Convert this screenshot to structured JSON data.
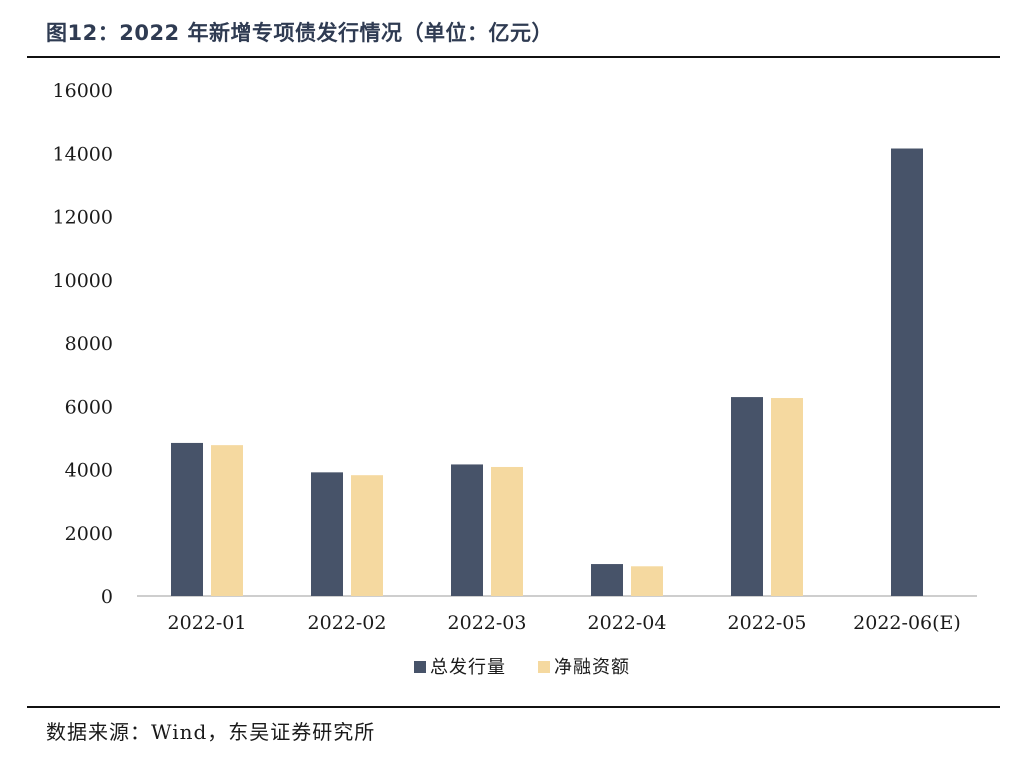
{
  "figure": {
    "title": "图12：2022 年新增专项债发行情况（单位：亿元）",
    "source": "数据来源：Wind，东吴证券研究所"
  },
  "chart_data": {
    "type": "bar",
    "categories": [
      "2022-01",
      "2022-02",
      "2022-03",
      "2022-04",
      "2022-05",
      "2022-06(E)"
    ],
    "series": [
      {
        "name": "总发行量",
        "values": [
          4840,
          3910,
          4160,
          1010,
          6290,
          14150
        ],
        "color": "#475369"
      },
      {
        "name": "净融资额",
        "values": [
          4770,
          3820,
          4080,
          940,
          6260,
          null
        ],
        "color": "#f5d9a0"
      }
    ],
    "yticks": [
      "0",
      "2000",
      "4000",
      "6000",
      "8000",
      "10000",
      "12000",
      "14000",
      "16000"
    ],
    "ylim": [
      0,
      16000
    ],
    "grid": false,
    "legend": "bottom-center"
  }
}
